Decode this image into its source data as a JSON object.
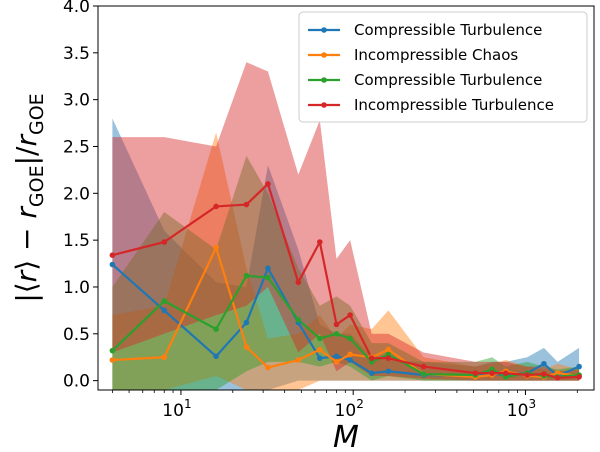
{
  "chart_data": {
    "type": "line",
    "x_scale": "log",
    "xlim": [
      3.3,
      2500
    ],
    "ylim": [
      -0.1,
      4.0
    ],
    "xlabel": "M",
    "ylabel": "|⟨r⟩ − r_GOE|/r_GOE",
    "y_ticks": [
      "0.0",
      "0.5",
      "1.0",
      "1.5",
      "2.0",
      "2.5",
      "3.0",
      "3.5",
      "4.0"
    ],
    "x_ticks": [
      {
        "value": 10,
        "label_base": "10",
        "label_exp": "1"
      },
      {
        "value": 100,
        "label_base": "10",
        "label_exp": "2"
      },
      {
        "value": 1000,
        "label_base": "10",
        "label_exp": "3"
      }
    ],
    "legend_position": "top-right",
    "series": [
      {
        "name": "Compressible Turbulence",
        "color": "#1f77b4",
        "x": [
          4,
          8,
          16,
          24,
          32,
          48,
          64,
          80,
          96,
          128,
          160,
          256,
          512,
          640,
          768,
          1024,
          1280,
          1536,
          2048
        ],
        "y": [
          1.24,
          0.75,
          0.26,
          0.62,
          1.2,
          0.62,
          0.24,
          0.26,
          0.22,
          0.08,
          0.1,
          0.06,
          0.05,
          0.07,
          0.06,
          0.08,
          0.18,
          0.05,
          0.15
        ],
        "upper": [
          2.8,
          1.6,
          1.05,
          1.0,
          2.3,
          1.4,
          0.6,
          0.5,
          0.5,
          0.25,
          0.22,
          0.2,
          0.15,
          0.2,
          0.2,
          0.25,
          0.35,
          0.2,
          0.35
        ],
        "lower": [
          -0.1,
          -0.1,
          -0.1,
          -0.1,
          -0.1,
          0.0,
          0.0,
          0.0,
          0.0,
          0.0,
          0.0,
          0.0,
          0.0,
          0.0,
          0.0,
          0.0,
          0.0,
          0.0,
          0.0
        ]
      },
      {
        "name": "Incompressible Chaos",
        "color": "#ff7f0e",
        "x": [
          4,
          8,
          16,
          24,
          32,
          48,
          64,
          80,
          96,
          128,
          160,
          256,
          512,
          640,
          768,
          1024,
          1280,
          1536,
          2048
        ],
        "y": [
          0.22,
          0.25,
          1.42,
          0.36,
          0.14,
          0.22,
          0.33,
          0.2,
          0.28,
          0.25,
          0.33,
          0.07,
          0.04,
          0.06,
          0.1,
          0.05,
          0.04,
          0.08,
          0.05
        ],
        "upper": [
          0.7,
          0.8,
          2.65,
          1.2,
          0.45,
          0.5,
          0.7,
          0.45,
          0.6,
          0.55,
          0.75,
          0.25,
          0.15,
          0.18,
          0.22,
          0.15,
          0.12,
          0.18,
          0.12
        ],
        "lower": [
          -0.1,
          -0.1,
          0.05,
          -0.1,
          -0.1,
          -0.1,
          0.0,
          0.0,
          0.0,
          0.0,
          0.0,
          0.0,
          0.0,
          0.0,
          0.0,
          0.0,
          0.0,
          0.0,
          0.0
        ]
      },
      {
        "name": "Compressible Turbulence",
        "color": "#2ca02c",
        "x": [
          4,
          8,
          16,
          24,
          32,
          48,
          64,
          80,
          96,
          128,
          160,
          256,
          512,
          640,
          768,
          1024,
          1280,
          1536,
          2048
        ],
        "y": [
          0.32,
          0.85,
          0.55,
          1.12,
          1.1,
          0.65,
          0.45,
          0.5,
          0.45,
          0.2,
          0.28,
          0.07,
          0.06,
          0.12,
          0.04,
          0.08,
          0.05,
          0.04,
          0.06
        ],
        "upper": [
          1.0,
          1.8,
          1.4,
          2.4,
          2.0,
          1.2,
          0.8,
          0.9,
          0.8,
          0.4,
          0.4,
          0.2,
          0.2,
          0.25,
          0.15,
          0.2,
          0.15,
          0.12,
          0.15
        ],
        "lower": [
          -0.1,
          -0.1,
          -0.1,
          0.1,
          0.2,
          0.2,
          0.15,
          0.2,
          0.15,
          0.0,
          0.05,
          0.0,
          0.0,
          0.0,
          0.0,
          0.0,
          0.0,
          0.0,
          0.0
        ]
      },
      {
        "name": "Incompressible Turbulence",
        "color": "#d62728",
        "x": [
          4,
          8,
          16,
          24,
          32,
          48,
          64,
          80,
          96,
          128,
          160,
          256,
          512,
          640,
          768,
          1024,
          1280,
          1536,
          2048
        ],
        "y": [
          1.34,
          1.48,
          1.86,
          1.88,
          2.1,
          1.05,
          1.48,
          0.6,
          0.7,
          0.24,
          0.24,
          0.15,
          0.08,
          0.08,
          0.08,
          0.06,
          0.07,
          0.03,
          0.04
        ],
        "upper": [
          2.6,
          2.6,
          2.5,
          3.4,
          3.3,
          2.2,
          2.78,
          1.3,
          1.5,
          0.5,
          0.5,
          0.3,
          0.2,
          0.2,
          0.2,
          0.15,
          0.15,
          0.1,
          0.12
        ],
        "lower": [
          0.3,
          0.5,
          0.7,
          0.8,
          1.0,
          0.3,
          0.5,
          0.1,
          0.2,
          0.05,
          0.05,
          0.02,
          0.0,
          0.0,
          0.0,
          0.0,
          0.0,
          0.0,
          0.0
        ]
      }
    ]
  }
}
